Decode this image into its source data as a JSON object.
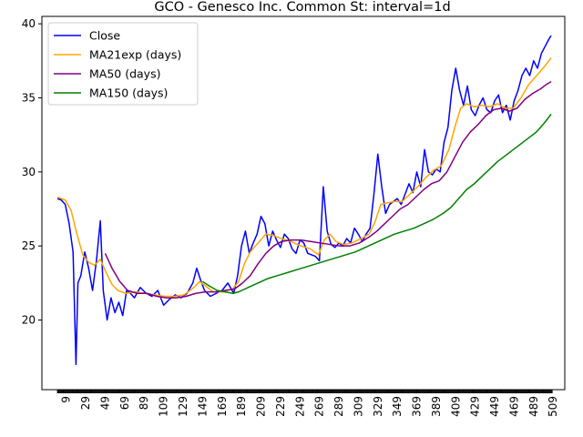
{
  "chart_data": {
    "type": "line",
    "title": "GCO - Genesco Inc. Common St: interval=1d",
    "xlabel": "",
    "ylabel": "",
    "xlim": [
      -16,
      521
    ],
    "ylim": [
      15.3,
      40.5
    ],
    "x_ticks": [
      9,
      29,
      49,
      69,
      89,
      109,
      129,
      149,
      169,
      189,
      209,
      229,
      249,
      269,
      289,
      309,
      329,
      349,
      369,
      389,
      409,
      429,
      449,
      469,
      489,
      509
    ],
    "y_ticks": [
      20,
      25,
      30,
      35,
      40
    ],
    "grid": false,
    "legend_position": "upper-left",
    "series": [
      {
        "name": "Close",
        "color": "#0000ff",
        "points": [
          [
            0,
            28.2
          ],
          [
            4,
            28.1
          ],
          [
            8,
            27.8
          ],
          [
            12,
            26.5
          ],
          [
            16,
            24.6
          ],
          [
            19,
            17.0
          ],
          [
            21,
            22.5
          ],
          [
            24,
            23.0
          ],
          [
            28,
            24.6
          ],
          [
            32,
            23.5
          ],
          [
            36,
            22.0
          ],
          [
            40,
            24.0
          ],
          [
            44,
            26.7
          ],
          [
            47,
            22.0
          ],
          [
            51,
            20.0
          ],
          [
            55,
            21.5
          ],
          [
            59,
            20.5
          ],
          [
            63,
            21.2
          ],
          [
            67,
            20.3
          ],
          [
            71,
            22.0
          ],
          [
            75,
            21.8
          ],
          [
            79,
            21.5
          ],
          [
            85,
            22.2
          ],
          [
            91,
            21.8
          ],
          [
            97,
            21.6
          ],
          [
            103,
            22.0
          ],
          [
            109,
            21.0
          ],
          [
            115,
            21.4
          ],
          [
            121,
            21.7
          ],
          [
            127,
            21.5
          ],
          [
            133,
            21.8
          ],
          [
            139,
            22.5
          ],
          [
            143,
            23.5
          ],
          [
            147,
            22.7
          ],
          [
            151,
            22.0
          ],
          [
            157,
            21.6
          ],
          [
            163,
            21.8
          ],
          [
            169,
            22.0
          ],
          [
            175,
            22.5
          ],
          [
            181,
            21.8
          ],
          [
            185,
            23.0
          ],
          [
            189,
            25.0
          ],
          [
            193,
            26.0
          ],
          [
            197,
            24.5
          ],
          [
            201,
            25.2
          ],
          [
            205,
            25.8
          ],
          [
            209,
            27.0
          ],
          [
            213,
            26.5
          ],
          [
            217,
            25.0
          ],
          [
            221,
            26.0
          ],
          [
            225,
            25.4
          ],
          [
            229,
            24.9
          ],
          [
            233,
            25.8
          ],
          [
            237,
            25.5
          ],
          [
            241,
            24.8
          ],
          [
            245,
            24.5
          ],
          [
            249,
            25.4
          ],
          [
            253,
            25.2
          ],
          [
            257,
            24.5
          ],
          [
            261,
            24.4
          ],
          [
            265,
            24.3
          ],
          [
            269,
            24.0
          ],
          [
            273,
            29.0
          ],
          [
            277,
            26.0
          ],
          [
            281,
            25.1
          ],
          [
            285,
            24.9
          ],
          [
            289,
            25.2
          ],
          [
            293,
            25.0
          ],
          [
            297,
            25.5
          ],
          [
            301,
            25.2
          ],
          [
            305,
            26.2
          ],
          [
            309,
            25.8
          ],
          [
            313,
            25.3
          ],
          [
            317,
            25.8
          ],
          [
            321,
            26.2
          ],
          [
            325,
            28.5
          ],
          [
            329,
            31.2
          ],
          [
            333,
            29.0
          ],
          [
            337,
            27.2
          ],
          [
            341,
            27.8
          ],
          [
            345,
            28.0
          ],
          [
            349,
            28.2
          ],
          [
            353,
            27.8
          ],
          [
            357,
            28.5
          ],
          [
            361,
            29.2
          ],
          [
            365,
            28.6
          ],
          [
            369,
            30.0
          ],
          [
            373,
            29.0
          ],
          [
            377,
            31.5
          ],
          [
            381,
            30.0
          ],
          [
            385,
            29.8
          ],
          [
            389,
            30.2
          ],
          [
            393,
            30.0
          ],
          [
            397,
            32.0
          ],
          [
            401,
            33.0
          ],
          [
            405,
            35.5
          ],
          [
            409,
            37.0
          ],
          [
            413,
            35.5
          ],
          [
            417,
            34.5
          ],
          [
            421,
            35.8
          ],
          [
            425,
            34.2
          ],
          [
            429,
            33.8
          ],
          [
            433,
            34.5
          ],
          [
            437,
            35.0
          ],
          [
            441,
            34.2
          ],
          [
            445,
            34.0
          ],
          [
            449,
            34.8
          ],
          [
            453,
            35.2
          ],
          [
            457,
            34.0
          ],
          [
            461,
            34.5
          ],
          [
            465,
            33.5
          ],
          [
            469,
            34.8
          ],
          [
            473,
            35.5
          ],
          [
            477,
            36.5
          ],
          [
            481,
            37.0
          ],
          [
            485,
            36.5
          ],
          [
            489,
            37.5
          ],
          [
            493,
            37.0
          ],
          [
            497,
            38.0
          ],
          [
            501,
            38.5
          ],
          [
            505,
            39.0
          ],
          [
            507,
            39.2
          ]
        ]
      },
      {
        "name": "MA21exp (days)",
        "color": "#ffa500",
        "points": [
          [
            0,
            28.3
          ],
          [
            8,
            28.1
          ],
          [
            14,
            27.4
          ],
          [
            20,
            25.8
          ],
          [
            26,
            24.4
          ],
          [
            32,
            23.9
          ],
          [
            38,
            23.7
          ],
          [
            44,
            24.1
          ],
          [
            50,
            23.2
          ],
          [
            56,
            22.4
          ],
          [
            62,
            22.0
          ],
          [
            70,
            21.8
          ],
          [
            80,
            21.9
          ],
          [
            90,
            21.8
          ],
          [
            100,
            21.7
          ],
          [
            110,
            21.6
          ],
          [
            120,
            21.6
          ],
          [
            130,
            21.7
          ],
          [
            140,
            22.2
          ],
          [
            146,
            22.6
          ],
          [
            152,
            22.3
          ],
          [
            160,
            21.9
          ],
          [
            170,
            21.9
          ],
          [
            180,
            22.1
          ],
          [
            186,
            22.6
          ],
          [
            192,
            23.8
          ],
          [
            198,
            24.6
          ],
          [
            206,
            25.2
          ],
          [
            214,
            25.8
          ],
          [
            222,
            25.7
          ],
          [
            230,
            25.5
          ],
          [
            240,
            25.3
          ],
          [
            250,
            25.0
          ],
          [
            260,
            24.8
          ],
          [
            268,
            24.4
          ],
          [
            274,
            25.4
          ],
          [
            280,
            25.8
          ],
          [
            286,
            25.3
          ],
          [
            294,
            25.1
          ],
          [
            302,
            25.2
          ],
          [
            312,
            25.5
          ],
          [
            320,
            25.8
          ],
          [
            326,
            26.6
          ],
          [
            332,
            27.8
          ],
          [
            338,
            27.9
          ],
          [
            346,
            28.0
          ],
          [
            354,
            28.0
          ],
          [
            362,
            28.5
          ],
          [
            370,
            29.0
          ],
          [
            378,
            29.6
          ],
          [
            386,
            30.1
          ],
          [
            394,
            30.4
          ],
          [
            402,
            31.5
          ],
          [
            408,
            33.0
          ],
          [
            414,
            34.3
          ],
          [
            420,
            34.6
          ],
          [
            428,
            34.4
          ],
          [
            436,
            34.5
          ],
          [
            444,
            34.4
          ],
          [
            452,
            34.6
          ],
          [
            460,
            34.3
          ],
          [
            468,
            34.3
          ],
          [
            476,
            35.0
          ],
          [
            484,
            35.9
          ],
          [
            492,
            36.5
          ],
          [
            500,
            37.1
          ],
          [
            507,
            37.7
          ]
        ]
      },
      {
        "name": "MA50 (days)",
        "color": "#800080",
        "points": [
          [
            49,
            24.5
          ],
          [
            56,
            23.5
          ],
          [
            64,
            22.6
          ],
          [
            72,
            22.0
          ],
          [
            82,
            21.8
          ],
          [
            92,
            21.8
          ],
          [
            102,
            21.6
          ],
          [
            112,
            21.5
          ],
          [
            122,
            21.5
          ],
          [
            132,
            21.6
          ],
          [
            142,
            21.8
          ],
          [
            152,
            21.9
          ],
          [
            162,
            21.9
          ],
          [
            172,
            22.0
          ],
          [
            182,
            22.1
          ],
          [
            190,
            22.5
          ],
          [
            198,
            23.0
          ],
          [
            206,
            23.8
          ],
          [
            214,
            24.5
          ],
          [
            222,
            25.0
          ],
          [
            230,
            25.3
          ],
          [
            240,
            25.4
          ],
          [
            250,
            25.4
          ],
          [
            260,
            25.3
          ],
          [
            270,
            25.2
          ],
          [
            280,
            25.1
          ],
          [
            290,
            25.0
          ],
          [
            300,
            25.0
          ],
          [
            310,
            25.2
          ],
          [
            320,
            25.6
          ],
          [
            328,
            26.0
          ],
          [
            336,
            26.5
          ],
          [
            344,
            27.0
          ],
          [
            352,
            27.5
          ],
          [
            360,
            27.8
          ],
          [
            368,
            28.3
          ],
          [
            376,
            28.8
          ],
          [
            384,
            29.2
          ],
          [
            392,
            29.4
          ],
          [
            400,
            30.0
          ],
          [
            408,
            31.0
          ],
          [
            416,
            32.0
          ],
          [
            424,
            32.7
          ],
          [
            432,
            33.2
          ],
          [
            440,
            33.8
          ],
          [
            448,
            34.2
          ],
          [
            456,
            34.3
          ],
          [
            464,
            34.1
          ],
          [
            472,
            34.3
          ],
          [
            480,
            34.9
          ],
          [
            488,
            35.3
          ],
          [
            496,
            35.6
          ],
          [
            502,
            35.9
          ],
          [
            507,
            36.1
          ]
        ]
      },
      {
        "name": "MA150 (days)",
        "color": "#008000",
        "points": [
          [
            149,
            22.6
          ],
          [
            156,
            22.3
          ],
          [
            164,
            22.0
          ],
          [
            172,
            21.9
          ],
          [
            180,
            21.8
          ],
          [
            186,
            21.9
          ],
          [
            196,
            22.2
          ],
          [
            206,
            22.5
          ],
          [
            216,
            22.8
          ],
          [
            226,
            23.0
          ],
          [
            236,
            23.2
          ],
          [
            246,
            23.4
          ],
          [
            256,
            23.6
          ],
          [
            266,
            23.8
          ],
          [
            276,
            24.0
          ],
          [
            286,
            24.2
          ],
          [
            296,
            24.4
          ],
          [
            306,
            24.6
          ],
          [
            316,
            24.9
          ],
          [
            326,
            25.2
          ],
          [
            336,
            25.5
          ],
          [
            346,
            25.8
          ],
          [
            356,
            26.0
          ],
          [
            366,
            26.2
          ],
          [
            376,
            26.5
          ],
          [
            386,
            26.8
          ],
          [
            396,
            27.2
          ],
          [
            404,
            27.6
          ],
          [
            412,
            28.2
          ],
          [
            420,
            28.8
          ],
          [
            428,
            29.2
          ],
          [
            436,
            29.7
          ],
          [
            444,
            30.2
          ],
          [
            452,
            30.7
          ],
          [
            460,
            31.1
          ],
          [
            468,
            31.5
          ],
          [
            476,
            31.9
          ],
          [
            484,
            32.3
          ],
          [
            492,
            32.7
          ],
          [
            500,
            33.3
          ],
          [
            507,
            33.9
          ]
        ]
      }
    ]
  }
}
